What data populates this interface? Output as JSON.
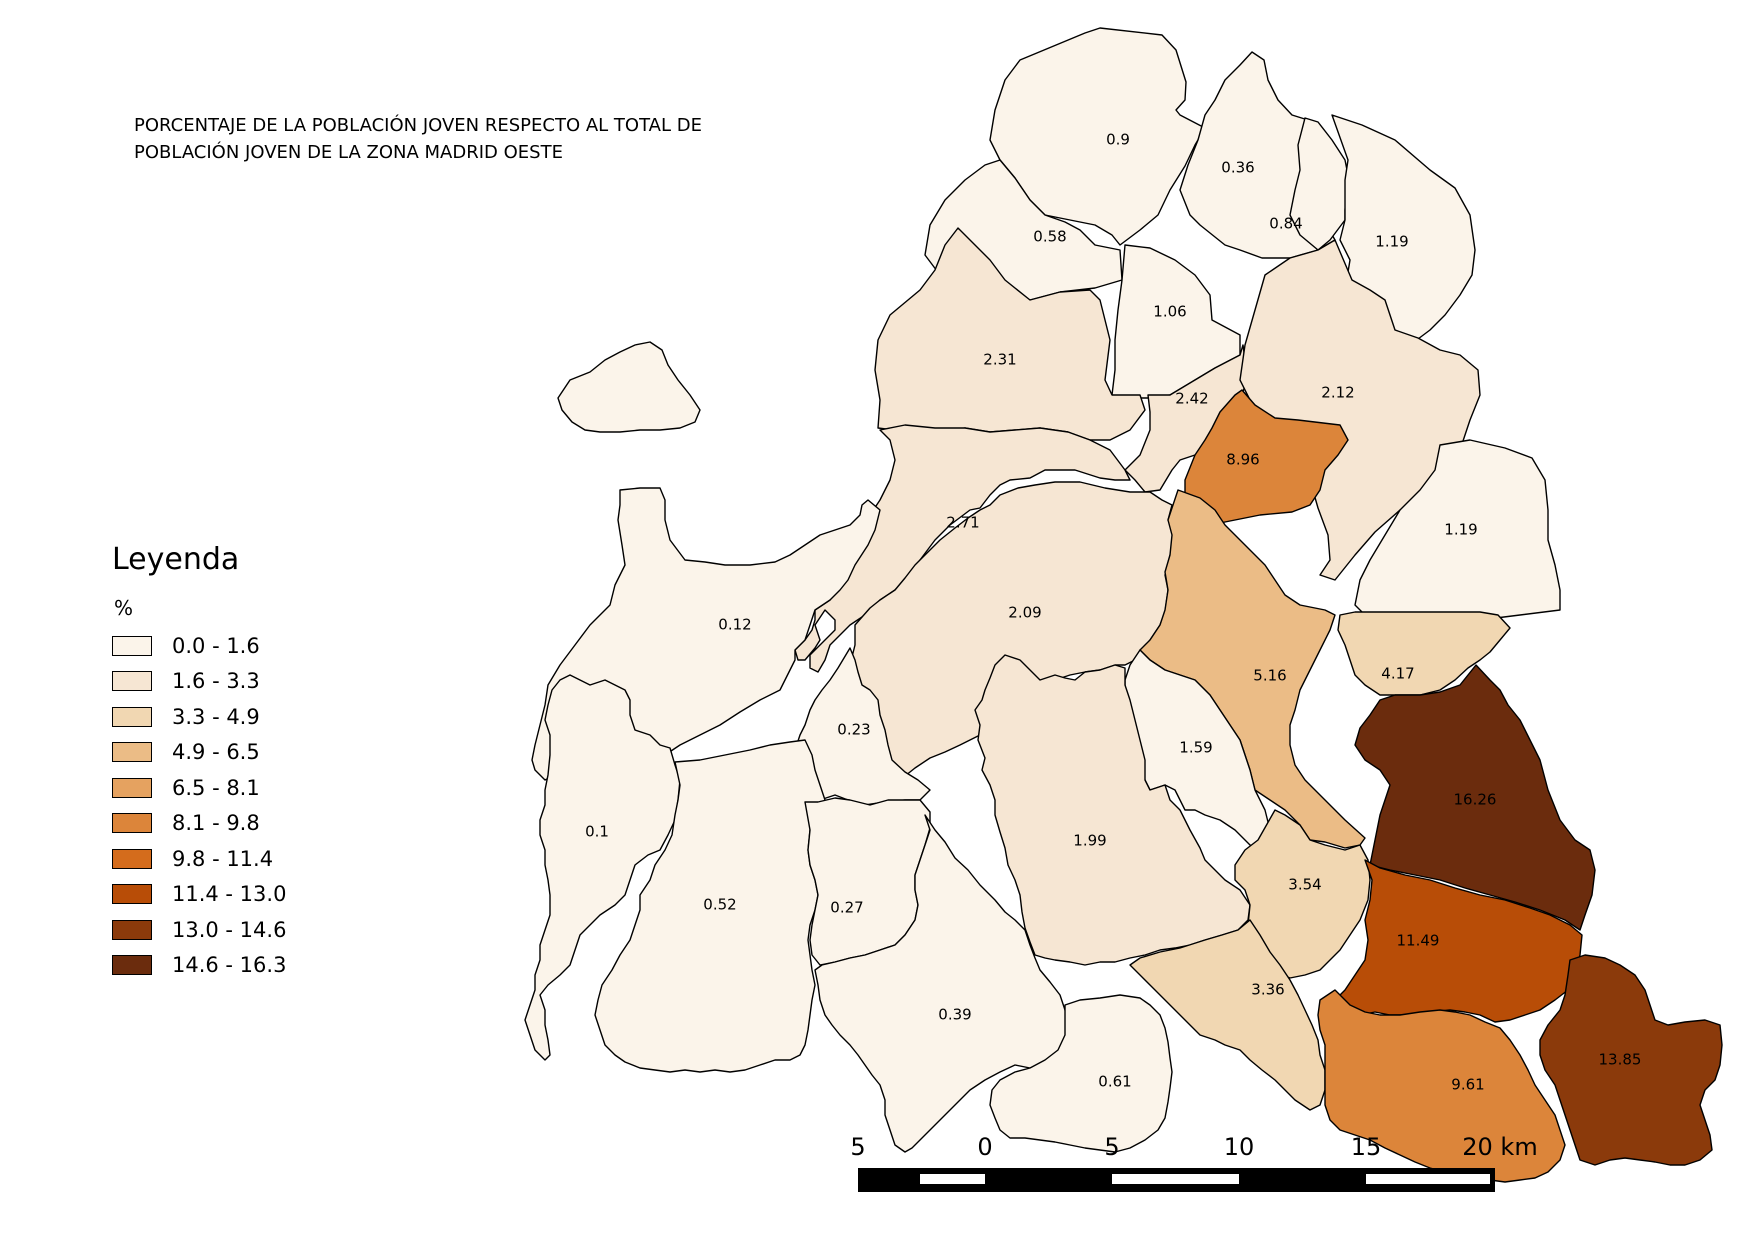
{
  "title": {
    "line1": "PORCENTAJE DE LA POBLACIÓN JOVEN RESPECTO AL TOTAL DE",
    "line2": "POBLACIÓN JOVEN DE LA  ZONA MADRID OESTE"
  },
  "legend": {
    "heading": "Leyenda",
    "unit": "%",
    "classes": [
      {
        "label": "0.0 - 1.6",
        "color": "#fbf4ea"
      },
      {
        "label": "1.6 - 3.3",
        "color": "#f6e6d3"
      },
      {
        "label": "3.3 - 4.9",
        "color": "#f1d7b2"
      },
      {
        "label": "4.9 - 6.5",
        "color": "#ebbc86"
      },
      {
        "label": "6.5 - 8.1",
        "color": "#e5a260"
      },
      {
        "label": "8.1 - 9.8",
        "color": "#dc853a"
      },
      {
        "label": "9.8 - 11.4",
        "color": "#d46c1c"
      },
      {
        "label": "11.4 - 13.0",
        "color": "#b84d07"
      },
      {
        "label": "13.0 - 14.6",
        "color": "#8b3a0b"
      },
      {
        "label": "14.6 - 16.3",
        "color": "#6b2c0d"
      }
    ]
  },
  "regions": [
    {
      "value": "0.9",
      "class": 0
    },
    {
      "value": "0.36",
      "class": 0
    },
    {
      "value": "0.58",
      "class": 0
    },
    {
      "value": "0.84",
      "class": 0
    },
    {
      "value": "1.19",
      "class": 0
    },
    {
      "value": "1.06",
      "class": 0
    },
    {
      "value": "2.31",
      "class": 1
    },
    {
      "value": "2.42",
      "class": 1
    },
    {
      "value": "2.12",
      "class": 1
    },
    {
      "value": "8.96",
      "class": 5
    },
    {
      "value": "2.71",
      "class": 1
    },
    {
      "value": "1.19",
      "class": 0
    },
    {
      "value": "2.09",
      "class": 1
    },
    {
      "value": "0.12",
      "class": 0
    },
    {
      "value": "5.16",
      "class": 3
    },
    {
      "value": "4.17",
      "class": 2
    },
    {
      "value": "0.23",
      "class": 0
    },
    {
      "value": "1.59",
      "class": 0
    },
    {
      "value": "16.26",
      "class": 9
    },
    {
      "value": "0.1",
      "class": 0
    },
    {
      "value": "1.99",
      "class": 1
    },
    {
      "value": "3.54",
      "class": 2
    },
    {
      "value": "0.52",
      "class": 0
    },
    {
      "value": "0.27",
      "class": 0
    },
    {
      "value": "11.49",
      "class": 7
    },
    {
      "value": "3.36",
      "class": 2
    },
    {
      "value": "0.39",
      "class": 0
    },
    {
      "value": "0.61",
      "class": 0
    },
    {
      "value": "9.61",
      "class": 5
    },
    {
      "value": "13.85",
      "class": 8
    },
    {
      "value": "",
      "class": 0
    }
  ],
  "scale_bar": {
    "labels": [
      "5",
      "0",
      "5",
      "10",
      "15",
      "20 km"
    ]
  }
}
